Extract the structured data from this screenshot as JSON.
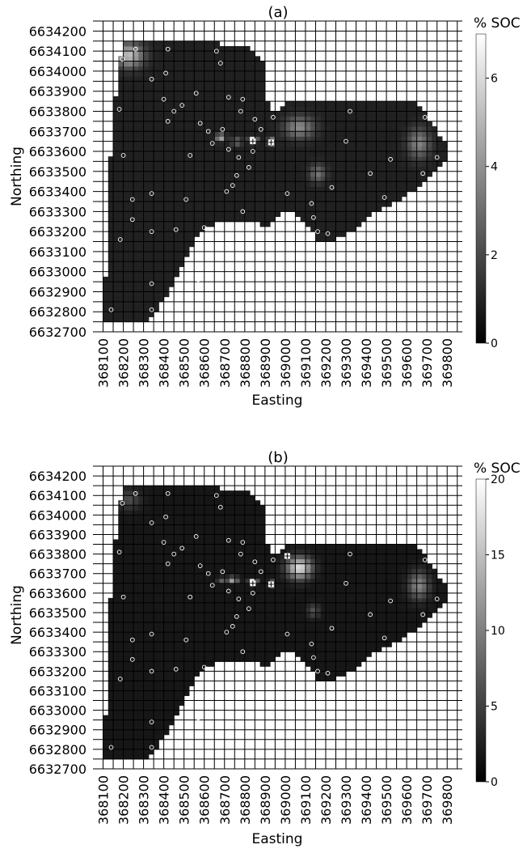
{
  "chart_data": [
    {
      "type": "heatmap",
      "title": "(a)",
      "xlabel": "Easting",
      "ylabel": "Northing",
      "colorbar_title": "% SOC",
      "colorbar_range": [
        0,
        7
      ],
      "colorbar_ticks": [
        "0",
        "2",
        "4",
        "6"
      ],
      "x_ticks": [
        368100,
        368200,
        368300,
        368400,
        368500,
        368600,
        368700,
        368800,
        368900,
        369000,
        369100,
        369200,
        369300,
        369400,
        369500,
        369600,
        369700,
        369800
      ],
      "y_ticks": [
        6632700,
        6632800,
        6632900,
        6633000,
        6633100,
        6633200,
        6633300,
        6633400,
        6633500,
        6633600,
        6633700,
        6633800,
        6633900,
        6634000,
        6634100,
        6634200
      ],
      "xlim": [
        368050,
        369875
      ],
      "ylim": [
        6632700,
        6634250
      ],
      "background_value": 0.9,
      "boundary": [
        [
          368110,
          6632740
        ],
        [
          368110,
          6632970
        ],
        [
          368130,
          6632990
        ],
        [
          368135,
          6633550
        ],
        [
          368150,
          6633710
        ],
        [
          368160,
          6633860
        ],
        [
          368175,
          6634000
        ],
        [
          368205,
          6634160
        ],
        [
          368500,
          6634160
        ],
        [
          368720,
          6634130
        ],
        [
          368810,
          6634120
        ],
        [
          368900,
          6634040
        ],
        [
          368915,
          6633810
        ],
        [
          368960,
          6633810
        ],
        [
          369000,
          6633840
        ],
        [
          369130,
          6633860
        ],
        [
          369480,
          6633860
        ],
        [
          369640,
          6633860
        ],
        [
          369690,
          6633790
        ],
        [
          369740,
          6633720
        ],
        [
          369800,
          6633630
        ],
        [
          369810,
          6633590
        ],
        [
          369760,
          6633520
        ],
        [
          369690,
          6633460
        ],
        [
          369640,
          6633410
        ],
        [
          369560,
          6633360
        ],
        [
          369500,
          6633330
        ],
        [
          369420,
          6633290
        ],
        [
          369380,
          6633240
        ],
        [
          369300,
          6633180
        ],
        [
          369200,
          6633140
        ],
        [
          369160,
          6633140
        ],
        [
          369140,
          6633190
        ],
        [
          369080,
          6633250
        ],
        [
          369040,
          6633290
        ],
        [
          368990,
          6633300
        ],
        [
          368950,
          6633270
        ],
        [
          368920,
          6633210
        ],
        [
          368860,
          6633260
        ],
        [
          368690,
          6633260
        ],
        [
          368590,
          6633210
        ],
        [
          368550,
          6633160
        ],
        [
          368510,
          6633080
        ],
        [
          368450,
          6632940
        ],
        [
          368400,
          6632860
        ],
        [
          368340,
          6632780
        ],
        [
          368330,
          6632740
        ]
      ],
      "hotspots": [
        {
          "x": 368230,
          "y": 6634080,
          "value": 5.2,
          "rx": 70,
          "ry": 60
        },
        {
          "x": 369070,
          "y": 6633720,
          "value": 3.8,
          "rx": 75,
          "ry": 55
        },
        {
          "x": 369660,
          "y": 6633640,
          "value": 3.6,
          "rx": 55,
          "ry": 75
        },
        {
          "x": 369160,
          "y": 6633490,
          "value": 3.2,
          "rx": 40,
          "ry": 45
        },
        {
          "x": 368680,
          "y": 6633670,
          "value": 5.5,
          "rx": 22,
          "ry": 18
        },
        {
          "x": 368840,
          "y": 6633660,
          "value": 6.5,
          "rx": 20,
          "ry": 14
        },
        {
          "x": 368930,
          "y": 6633650,
          "value": 6.8,
          "rx": 15,
          "ry": 14
        },
        {
          "x": 368760,
          "y": 6633650,
          "value": 3.0,
          "rx": 25,
          "ry": 20
        }
      ],
      "sample_points": [
        [
          368195,
          6634060
        ],
        [
          368260,
          6634110
        ],
        [
          368420,
          6634110
        ],
        [
          368660,
          6634100
        ],
        [
          368680,
          6634040
        ],
        [
          368410,
          6633990
        ],
        [
          368340,
          6633960
        ],
        [
          368560,
          6633890
        ],
        [
          368490,
          6633830
        ],
        [
          368180,
          6633810
        ],
        [
          368400,
          6633860
        ],
        [
          368450,
          6633800
        ],
        [
          368420,
          6633750
        ],
        [
          368580,
          6633740
        ],
        [
          368720,
          6633870
        ],
        [
          368790,
          6633860
        ],
        [
          368780,
          6633800
        ],
        [
          368850,
          6633760
        ],
        [
          368880,
          6633710
        ],
        [
          368940,
          6633770
        ],
        [
          368620,
          6633700
        ],
        [
          368690,
          6633710
        ],
        [
          368640,
          6633640
        ],
        [
          368720,
          6633610
        ],
        [
          368770,
          6633570
        ],
        [
          368840,
          6633600
        ],
        [
          368820,
          6633520
        ],
        [
          368760,
          6633480
        ],
        [
          368740,
          6633430
        ],
        [
          368710,
          6633400
        ],
        [
          368530,
          6633580
        ],
        [
          368200,
          6633580
        ],
        [
          368245,
          6633360
        ],
        [
          368245,
          6633260
        ],
        [
          368185,
          6633160
        ],
        [
          368340,
          6633390
        ],
        [
          368340,
          6633200
        ],
        [
          368510,
          6633360
        ],
        [
          368460,
          6633210
        ],
        [
          368600,
          6633220
        ],
        [
          368790,
          6633300
        ],
        [
          369010,
          6633390
        ],
        [
          369130,
          6633340
        ],
        [
          369140,
          6633270
        ],
        [
          369160,
          6633200
        ],
        [
          369210,
          6633190
        ],
        [
          369230,
          6633420
        ],
        [
          369420,
          6633490
        ],
        [
          369520,
          6633560
        ],
        [
          369490,
          6633370
        ],
        [
          369680,
          6633490
        ],
        [
          369690,
          6633770
        ],
        [
          369750,
          6633570
        ],
        [
          369300,
          6633650
        ],
        [
          369320,
          6633800
        ],
        [
          368140,
          6632810
        ],
        [
          368340,
          6632810
        ],
        [
          368340,
          6632940
        ],
        [
          368570,
          6632960
        ]
      ],
      "cross_points": [
        [
          368840,
          6633650
        ],
        [
          368930,
          6633645
        ]
      ]
    },
    {
      "type": "heatmap",
      "title": "(b)",
      "xlabel": "Easting",
      "ylabel": "Northing",
      "colorbar_title": "% SOC",
      "colorbar_range": [
        0,
        20
      ],
      "colorbar_ticks": [
        "0",
        "5",
        "10",
        "15",
        "20"
      ],
      "x_ticks": [
        368100,
        368200,
        368300,
        368400,
        368500,
        368600,
        368700,
        368800,
        368900,
        369000,
        369100,
        369200,
        369300,
        369400,
        369500,
        369600,
        369700,
        369800
      ],
      "y_ticks": [
        6632700,
        6632800,
        6632900,
        6633000,
        6633100,
        6633200,
        6633300,
        6633400,
        6633500,
        6633600,
        6633700,
        6633800,
        6633900,
        6634000,
        6634100,
        6634200
      ],
      "xlim": [
        368050,
        369875
      ],
      "ylim": [
        6632700,
        6634250
      ],
      "background_value": 1.8,
      "boundary": [
        [
          368110,
          6632740
        ],
        [
          368110,
          6632970
        ],
        [
          368130,
          6632990
        ],
        [
          368135,
          6633550
        ],
        [
          368150,
          6633710
        ],
        [
          368160,
          6633860
        ],
        [
          368175,
          6634000
        ],
        [
          368205,
          6634160
        ],
        [
          368500,
          6634160
        ],
        [
          368720,
          6634130
        ],
        [
          368810,
          6634120
        ],
        [
          368900,
          6634040
        ],
        [
          368915,
          6633810
        ],
        [
          368960,
          6633810
        ],
        [
          369000,
          6633840
        ],
        [
          369130,
          6633860
        ],
        [
          369480,
          6633860
        ],
        [
          369640,
          6633860
        ],
        [
          369690,
          6633790
        ],
        [
          369740,
          6633720
        ],
        [
          369800,
          6633630
        ],
        [
          369810,
          6633590
        ],
        [
          369760,
          6633520
        ],
        [
          369690,
          6633460
        ],
        [
          369640,
          6633410
        ],
        [
          369560,
          6633360
        ],
        [
          369500,
          6633330
        ],
        [
          369420,
          6633290
        ],
        [
          369380,
          6633240
        ],
        [
          369300,
          6633180
        ],
        [
          369200,
          6633140
        ],
        [
          369160,
          6633140
        ],
        [
          369140,
          6633190
        ],
        [
          369080,
          6633250
        ],
        [
          369040,
          6633290
        ],
        [
          368990,
          6633300
        ],
        [
          368950,
          6633270
        ],
        [
          368920,
          6633210
        ],
        [
          368860,
          6633260
        ],
        [
          368690,
          6633260
        ],
        [
          368590,
          6633210
        ],
        [
          368550,
          6633160
        ],
        [
          368510,
          6633080
        ],
        [
          368450,
          6632940
        ],
        [
          368400,
          6632860
        ],
        [
          368340,
          6632780
        ],
        [
          368330,
          6632740
        ]
      ],
      "hotspots": [
        {
          "x": 369070,
          "y": 6633730,
          "value": 17.5,
          "rx": 60,
          "ry": 55
        },
        {
          "x": 369660,
          "y": 6633640,
          "value": 10.5,
          "rx": 50,
          "ry": 70
        },
        {
          "x": 369140,
          "y": 6633510,
          "value": 6.5,
          "rx": 30,
          "ry": 35
        },
        {
          "x": 368230,
          "y": 6634080,
          "value": 6.0,
          "rx": 55,
          "ry": 50
        },
        {
          "x": 368840,
          "y": 6633660,
          "value": 19.0,
          "rx": 20,
          "ry": 12
        },
        {
          "x": 368930,
          "y": 6633650,
          "value": 19.0,
          "rx": 12,
          "ry": 12
        },
        {
          "x": 368740,
          "y": 6633670,
          "value": 16.0,
          "rx": 28,
          "ry": 14
        },
        {
          "x": 368680,
          "y": 6633670,
          "value": 12.0,
          "rx": 15,
          "ry": 12
        }
      ],
      "sample_points": [
        [
          368195,
          6634060
        ],
        [
          368260,
          6634110
        ],
        [
          368420,
          6634110
        ],
        [
          368660,
          6634100
        ],
        [
          368680,
          6634040
        ],
        [
          368410,
          6633990
        ],
        [
          368340,
          6633960
        ],
        [
          368560,
          6633890
        ],
        [
          368490,
          6633830
        ],
        [
          368180,
          6633810
        ],
        [
          368400,
          6633860
        ],
        [
          368450,
          6633800
        ],
        [
          368420,
          6633750
        ],
        [
          368580,
          6633740
        ],
        [
          368720,
          6633870
        ],
        [
          368790,
          6633860
        ],
        [
          368780,
          6633800
        ],
        [
          368850,
          6633760
        ],
        [
          368880,
          6633710
        ],
        [
          368940,
          6633770
        ],
        [
          368620,
          6633700
        ],
        [
          368690,
          6633710
        ],
        [
          368640,
          6633640
        ],
        [
          368720,
          6633610
        ],
        [
          368770,
          6633570
        ],
        [
          368840,
          6633600
        ],
        [
          368820,
          6633520
        ],
        [
          368760,
          6633480
        ],
        [
          368740,
          6633430
        ],
        [
          368710,
          6633400
        ],
        [
          368530,
          6633580
        ],
        [
          368200,
          6633580
        ],
        [
          368245,
          6633360
        ],
        [
          368245,
          6633260
        ],
        [
          368185,
          6633160
        ],
        [
          368340,
          6633390
        ],
        [
          368340,
          6633200
        ],
        [
          368510,
          6633360
        ],
        [
          368460,
          6633210
        ],
        [
          368600,
          6633220
        ],
        [
          368790,
          6633300
        ],
        [
          369010,
          6633390
        ],
        [
          369130,
          6633340
        ],
        [
          369140,
          6633270
        ],
        [
          369160,
          6633200
        ],
        [
          369210,
          6633190
        ],
        [
          369230,
          6633420
        ],
        [
          369420,
          6633490
        ],
        [
          369520,
          6633560
        ],
        [
          369490,
          6633370
        ],
        [
          369680,
          6633490
        ],
        [
          369690,
          6633770
        ],
        [
          369750,
          6633570
        ],
        [
          369300,
          6633650
        ],
        [
          369320,
          6633800
        ],
        [
          368140,
          6632810
        ],
        [
          368340,
          6632810
        ],
        [
          368340,
          6632940
        ],
        [
          368570,
          6632960
        ]
      ],
      "cross_points": [
        [
          368840,
          6633650
        ],
        [
          368930,
          6633645
        ],
        [
          369010,
          6633790
        ]
      ]
    }
  ]
}
